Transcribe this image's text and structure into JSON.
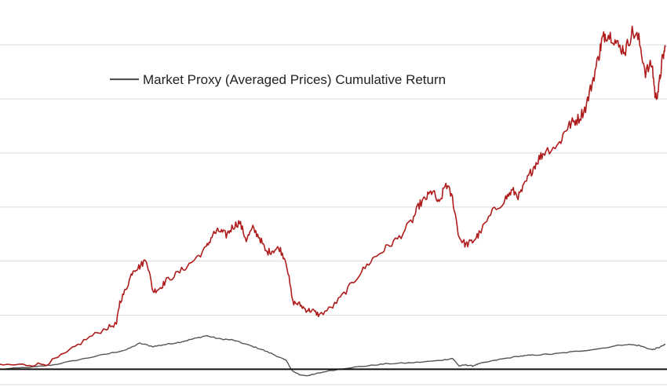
{
  "chart_data": {
    "type": "line",
    "title": "",
    "xlabel": "",
    "ylabel": "",
    "grid": true,
    "legend_placement": "top-left",
    "baseline": 0,
    "ylim": [
      -0.15,
      3.4
    ],
    "xlim": [
      0,
      100
    ],
    "legend": {
      "label": "Market Proxy (Averaged Prices)  Cumulative Return"
    },
    "colors": {
      "market_proxy": "#555555",
      "strategy": "#b01c1c",
      "baseline": "#111111",
      "grid": "#dddddd"
    },
    "series": [
      {
        "name": "Market Proxy (Averaged Prices)  Cumulative Return",
        "color": "#555555",
        "x": [
          0,
          5,
          8,
          12,
          16,
          19,
          21,
          23,
          25,
          27,
          29,
          31,
          33,
          35,
          37,
          39,
          41,
          43,
          44,
          45,
          46,
          47,
          49,
          52,
          55,
          58,
          62,
          66,
          68,
          69,
          70,
          71,
          72,
          75,
          78,
          80,
          83,
          86,
          90,
          94,
          96,
          98,
          99,
          100
        ],
        "values": [
          0.0,
          0.02,
          0.04,
          0.09,
          0.14,
          0.18,
          0.24,
          0.21,
          0.23,
          0.25,
          0.28,
          0.31,
          0.28,
          0.27,
          0.23,
          0.19,
          0.14,
          0.08,
          -0.02,
          -0.05,
          -0.06,
          -0.05,
          -0.02,
          0.01,
          0.03,
          0.05,
          0.06,
          0.08,
          0.1,
          0.03,
          0.04,
          0.03,
          0.05,
          0.09,
          0.12,
          0.13,
          0.14,
          0.16,
          0.19,
          0.23,
          0.22,
          0.18,
          0.2,
          0.23
        ]
      },
      {
        "name": "",
        "color": "#b01c1c",
        "x": [
          0,
          4,
          7,
          10,
          13,
          16,
          17.5,
          18,
          19,
          20,
          21,
          22,
          23,
          24,
          25,
          27,
          29,
          31,
          32,
          33,
          34,
          35,
          36,
          37,
          38,
          39,
          40,
          41,
          42,
          43,
          44,
          45,
          46,
          47,
          48,
          50,
          52,
          54,
          56,
          58,
          60,
          62,
          63,
          64,
          65,
          66,
          67,
          68,
          69,
          70,
          71,
          72,
          74,
          76,
          77,
          78,
          79,
          80,
          81,
          82,
          84,
          85,
          86,
          87,
          88,
          89,
          90,
          90.5,
          91,
          92,
          93,
          94,
          95,
          96,
          97,
          98,
          98.5,
          99,
          99.5,
          100
        ],
        "values": [
          0.04,
          0.04,
          0.05,
          0.15,
          0.28,
          0.38,
          0.42,
          0.62,
          0.75,
          0.92,
          0.95,
          1.02,
          0.72,
          0.75,
          0.82,
          0.9,
          1.0,
          1.12,
          1.25,
          1.28,
          1.24,
          1.32,
          1.36,
          1.2,
          1.3,
          1.22,
          1.08,
          1.1,
          1.12,
          1.0,
          0.62,
          0.6,
          0.55,
          0.54,
          0.5,
          0.58,
          0.72,
          0.88,
          1.02,
          1.12,
          1.22,
          1.38,
          1.52,
          1.58,
          1.65,
          1.52,
          1.72,
          1.58,
          1.22,
          1.15,
          1.18,
          1.25,
          1.45,
          1.58,
          1.65,
          1.6,
          1.72,
          1.85,
          1.95,
          2.02,
          2.08,
          2.22,
          2.28,
          2.32,
          2.42,
          2.65,
          2.9,
          3.05,
          3.1,
          3.08,
          2.98,
          2.95,
          3.12,
          3.05,
          2.75,
          2.82,
          2.5,
          2.6,
          2.85,
          2.98
        ]
      }
    ]
  }
}
